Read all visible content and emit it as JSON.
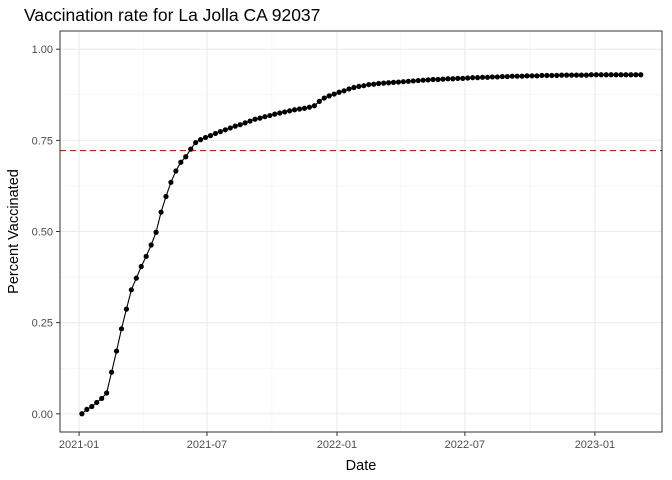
{
  "chart_data": {
    "type": "line",
    "title": "Vaccination rate for La Jolla CA 92037",
    "xlabel": "Date",
    "ylabel": "Percent Vaccinated",
    "x_ticks": [
      "2021-01",
      "2021-07",
      "2022-01",
      "2022-07",
      "2023-01"
    ],
    "y_ticks": [
      "0.00",
      "0.25",
      "0.50",
      "0.75",
      "1.00"
    ],
    "xlim": [
      "2020-12-05",
      "2023-04-06"
    ],
    "ylim": [
      -0.05,
      1.05
    ],
    "grid": true,
    "reference_line": {
      "y": 0.722,
      "style": "dashed",
      "color": "#ff0000"
    },
    "series_color": "#000000",
    "series": [
      {
        "x": [
          "2021-01-05",
          "2021-01-12",
          "2021-01-19",
          "2021-01-26",
          "2021-02-02",
          "2021-02-09",
          "2021-02-16",
          "2021-02-23",
          "2021-03-02",
          "2021-03-09",
          "2021-03-16",
          "2021-03-23",
          "2021-03-30",
          "2021-04-06",
          "2021-04-13",
          "2021-04-20",
          "2021-04-27",
          "2021-05-04",
          "2021-05-11",
          "2021-05-18",
          "2021-05-25",
          "2021-06-01",
          "2021-06-08",
          "2021-06-15",
          "2021-06-22",
          "2021-06-29",
          "2021-07-06",
          "2021-07-13",
          "2021-07-20",
          "2021-07-27",
          "2021-08-03",
          "2021-08-10",
          "2021-08-17",
          "2021-08-24",
          "2021-08-31",
          "2021-09-07",
          "2021-09-14",
          "2021-09-21",
          "2021-09-28",
          "2021-10-05",
          "2021-10-12",
          "2021-10-19",
          "2021-10-26",
          "2021-11-02",
          "2021-11-09",
          "2021-11-16",
          "2021-11-23",
          "2021-11-30",
          "2021-12-07",
          "2021-12-14",
          "2021-12-21",
          "2021-12-28",
          "2022-01-04",
          "2022-01-11",
          "2022-01-18",
          "2022-01-25",
          "2022-02-01",
          "2022-02-08",
          "2022-02-15",
          "2022-02-22",
          "2022-03-01",
          "2022-03-08",
          "2022-03-15",
          "2022-03-22",
          "2022-03-29",
          "2022-04-05",
          "2022-04-12",
          "2022-04-19",
          "2022-04-26",
          "2022-05-03",
          "2022-05-10",
          "2022-05-17",
          "2022-05-24",
          "2022-05-31",
          "2022-06-07",
          "2022-06-14",
          "2022-06-21",
          "2022-06-28",
          "2022-07-05",
          "2022-07-12",
          "2022-07-19",
          "2022-07-26",
          "2022-08-02",
          "2022-08-09",
          "2022-08-16",
          "2022-08-23",
          "2022-08-30",
          "2022-09-06",
          "2022-09-13",
          "2022-09-20",
          "2022-09-27",
          "2022-10-04",
          "2022-10-11",
          "2022-10-18",
          "2022-10-25",
          "2022-11-01",
          "2022-11-08",
          "2022-11-15",
          "2022-11-22",
          "2022-11-29",
          "2022-12-06",
          "2022-12-13",
          "2022-12-20",
          "2022-12-27",
          "2023-01-03",
          "2023-01-10",
          "2023-01-17",
          "2023-01-24",
          "2023-01-31",
          "2023-02-07",
          "2023-02-14",
          "2023-02-21",
          "2023-02-28",
          "2023-03-07"
        ],
        "values": [
          0.0,
          0.012,
          0.02,
          0.031,
          0.042,
          0.057,
          0.114,
          0.172,
          0.233,
          0.287,
          0.34,
          0.372,
          0.404,
          0.432,
          0.463,
          0.498,
          0.553,
          0.596,
          0.635,
          0.666,
          0.69,
          0.705,
          0.726,
          0.744,
          0.752,
          0.758,
          0.763,
          0.769,
          0.774,
          0.779,
          0.784,
          0.789,
          0.793,
          0.798,
          0.803,
          0.808,
          0.811,
          0.815,
          0.818,
          0.822,
          0.825,
          0.828,
          0.831,
          0.834,
          0.836,
          0.838,
          0.841,
          0.845,
          0.857,
          0.866,
          0.872,
          0.877,
          0.882,
          0.886,
          0.891,
          0.895,
          0.898,
          0.9,
          0.903,
          0.904,
          0.906,
          0.907,
          0.908,
          0.909,
          0.91,
          0.911,
          0.912,
          0.913,
          0.914,
          0.915,
          0.916,
          0.917,
          0.917,
          0.918,
          0.919,
          0.919,
          0.92,
          0.92,
          0.921,
          0.922,
          0.922,
          0.923,
          0.923,
          0.924,
          0.924,
          0.925,
          0.925,
          0.926,
          0.926,
          0.926,
          0.927,
          0.927,
          0.927,
          0.928,
          0.928,
          0.928,
          0.928,
          0.929,
          0.929,
          0.929,
          0.929,
          0.929,
          0.929,
          0.93,
          0.93,
          0.93,
          0.93,
          0.93,
          0.93,
          0.93,
          0.93,
          0.93,
          0.93,
          0.93
        ]
      }
    ]
  }
}
